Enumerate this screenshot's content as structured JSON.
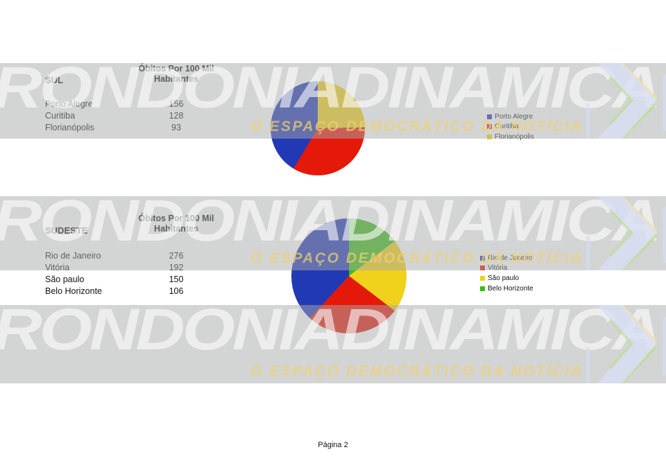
{
  "page": {
    "label": "Página 2"
  },
  "watermark": {
    "brand_text": "RONDONIADINAMICA",
    "tagline": "O ESPAÇO DEMOCRÁTICO DA NOTÍCIA",
    "band_color": "#d4d5d4",
    "brand_text_color": "#efefee",
    "tagline_color": "#e6d198",
    "chevron_color": "#dce1f5",
    "chevron_accent_yellow": "#f2dfa0",
    "chevron_accent_green": "#bcdc8a"
  },
  "chart_data": [
    {
      "type": "pie",
      "title": "SUL",
      "value_header": "Óbitos Por 100 Mil Habitantes",
      "categories": [
        "Porto Alegre",
        "Curitiba",
        "Florianópolis"
      ],
      "values": [
        156,
        128,
        93
      ],
      "colors": [
        "#2239b5",
        "#e4190a",
        "#f0d11b"
      ],
      "legend_position": "right",
      "slice_order": "categories drawn counterclockwise from top (yellow, red, blue appear clockwise)"
    },
    {
      "type": "pie",
      "title": "SUDESTE",
      "value_header": "Óbitos Por 100 Mil Habitantes",
      "categories": [
        "Rio de Janeiro",
        "Vitória",
        "São paulo",
        "Belo Horizonte"
      ],
      "values": [
        276,
        192,
        150,
        106
      ],
      "colors": [
        "#2239b5",
        "#e4190a",
        "#f0d11b",
        "#3dbb18"
      ],
      "legend_position": "right",
      "slice_order": "categories drawn counterclockwise from top (green, yellow, red, blue appear clockwise)"
    }
  ]
}
